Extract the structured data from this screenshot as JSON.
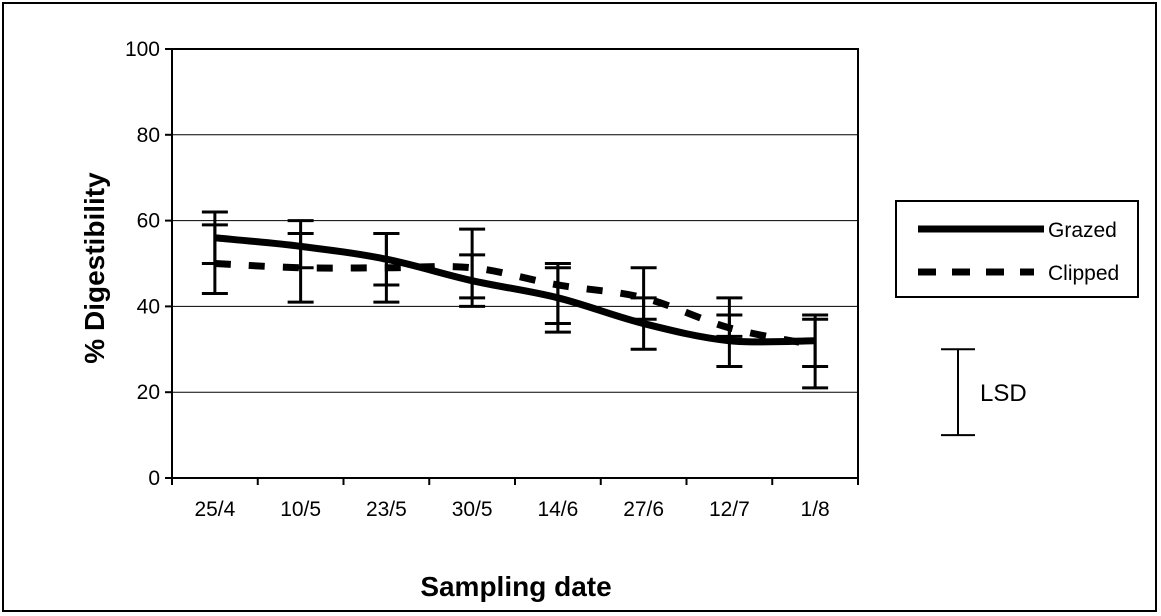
{
  "chart_data": {
    "type": "line",
    "title": "",
    "xlabel": "Sampling date",
    "ylabel": "% Digestibility",
    "ylim": [
      0,
      100
    ],
    "yticks": [
      0,
      20,
      40,
      60,
      80,
      100
    ],
    "grid": true,
    "legend_position": "right",
    "categories": [
      "25/4",
      "10/5",
      "23/5",
      "30/5",
      "14/6",
      "27/6",
      "12/7",
      "1/8"
    ],
    "series": [
      {
        "name": "Grazed",
        "line_style": "solid",
        "values": [
          56,
          54,
          51,
          46,
          42,
          36,
          32,
          32
        ],
        "error_low": [
          43,
          41,
          41,
          40,
          34,
          30,
          26,
          21
        ],
        "error_high": [
          62,
          60,
          57,
          58,
          50,
          49,
          42,
          38
        ],
        "color": "#000000"
      },
      {
        "name": "Clipped",
        "line_style": "dashed",
        "values": [
          50,
          49,
          49,
          49,
          45,
          42,
          35,
          31
        ],
        "error_low": [
          50,
          49,
          45,
          42,
          36,
          37,
          33,
          26
        ],
        "error_high": [
          59,
          57,
          57,
          52,
          49,
          42,
          38,
          37
        ],
        "color": "#000000"
      }
    ],
    "lsd": {
      "label": "LSD",
      "low": 10,
      "high": 30
    }
  }
}
